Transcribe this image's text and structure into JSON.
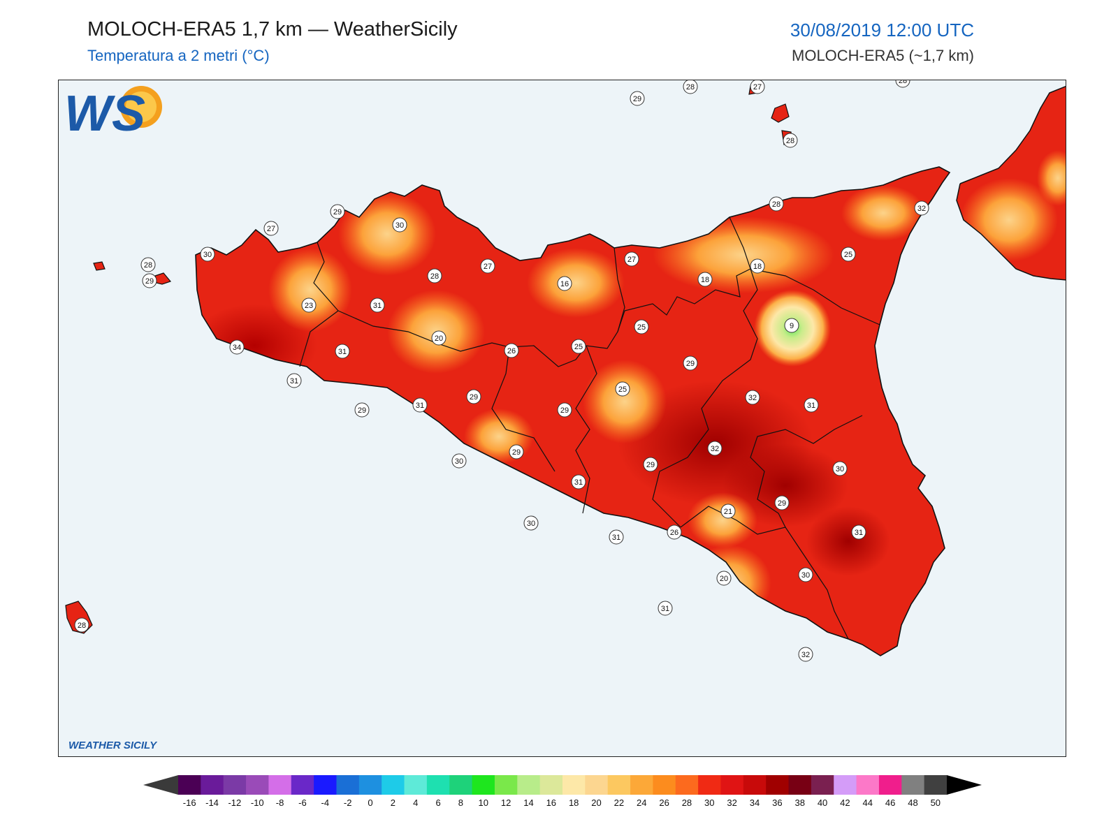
{
  "header": {
    "title": "MOLOCH-ERA5 1,7 km — WeatherSicily",
    "subtitle": "Temperatura a 2 metri (°C)",
    "datetime": "30/08/2019 12:00 UTC",
    "model": "MOLOCH-ERA5 (~1,7 km)"
  },
  "logo": {
    "letters": "WS",
    "text": "WEATHER SICILY"
  },
  "colorbar": {
    "ticks": [
      "-16",
      "-14",
      "-12",
      "-10",
      "-8",
      "-6",
      "-4",
      "-2",
      "0",
      "2",
      "4",
      "6",
      "8",
      "10",
      "12",
      "14",
      "16",
      "18",
      "20",
      "22",
      "24",
      "26",
      "28",
      "30",
      "32",
      "34",
      "36",
      "38",
      "40",
      "42",
      "44",
      "46",
      "48",
      "50"
    ],
    "colors": [
      "#4b0055",
      "#6a1b9a",
      "#7b3aa6",
      "#9a4bb8",
      "#d46ee8",
      "#6a28c8",
      "#1a1aff",
      "#1a6fd6",
      "#1e90e0",
      "#1ecbe8",
      "#5eead8",
      "#1ee0b0",
      "#1ed27a",
      "#1ee61e",
      "#7ae84a",
      "#b8ec8a",
      "#dce89a",
      "#fde8a8",
      "#fcd690",
      "#fcc860",
      "#fca838",
      "#fc8c1e",
      "#fc6a1e",
      "#f02a14",
      "#e01414",
      "#c80a0a",
      "#a00000",
      "#780014",
      "#7a2050",
      "#d49cf8",
      "#fc78c8",
      "#f01e8c",
      "#808080",
      "#404040"
    ]
  },
  "stations": [
    {
      "v": "29"
    },
    {
      "v": "28"
    },
    {
      "v": "27"
    },
    {
      "v": "28"
    },
    {
      "v": "28"
    },
    {
      "v": "28"
    },
    {
      "v": "32"
    },
    {
      "v": "29"
    },
    {
      "v": "27"
    },
    {
      "v": "30"
    },
    {
      "v": "28"
    },
    {
      "v": "29"
    },
    {
      "v": "27"
    },
    {
      "v": "28"
    },
    {
      "v": "16"
    },
    {
      "v": "27"
    },
    {
      "v": "18"
    },
    {
      "v": "18"
    },
    {
      "v": "25"
    },
    {
      "v": "23"
    },
    {
      "v": "31"
    },
    {
      "v": "30"
    },
    {
      "v": "9"
    },
    {
      "v": "25"
    },
    {
      "v": "34"
    },
    {
      "v": "20"
    },
    {
      "v": "31"
    },
    {
      "v": "26"
    },
    {
      "v": "25"
    },
    {
      "v": "29"
    },
    {
      "v": "31"
    },
    {
      "v": "29"
    },
    {
      "v": "31"
    },
    {
      "v": "29"
    },
    {
      "v": "25"
    },
    {
      "v": "32"
    },
    {
      "v": "31"
    },
    {
      "v": "29"
    },
    {
      "v": "32"
    },
    {
      "v": "29"
    },
    {
      "v": "30"
    },
    {
      "v": "31"
    },
    {
      "v": "29"
    },
    {
      "v": "29"
    },
    {
      "v": "30"
    },
    {
      "v": "21"
    },
    {
      "v": "26"
    },
    {
      "v": "30"
    },
    {
      "v": "31"
    },
    {
      "v": "20"
    },
    {
      "v": "30"
    },
    {
      "v": "31"
    },
    {
      "v": "31"
    },
    {
      "v": "32"
    },
    {
      "v": "28"
    }
  ]
}
